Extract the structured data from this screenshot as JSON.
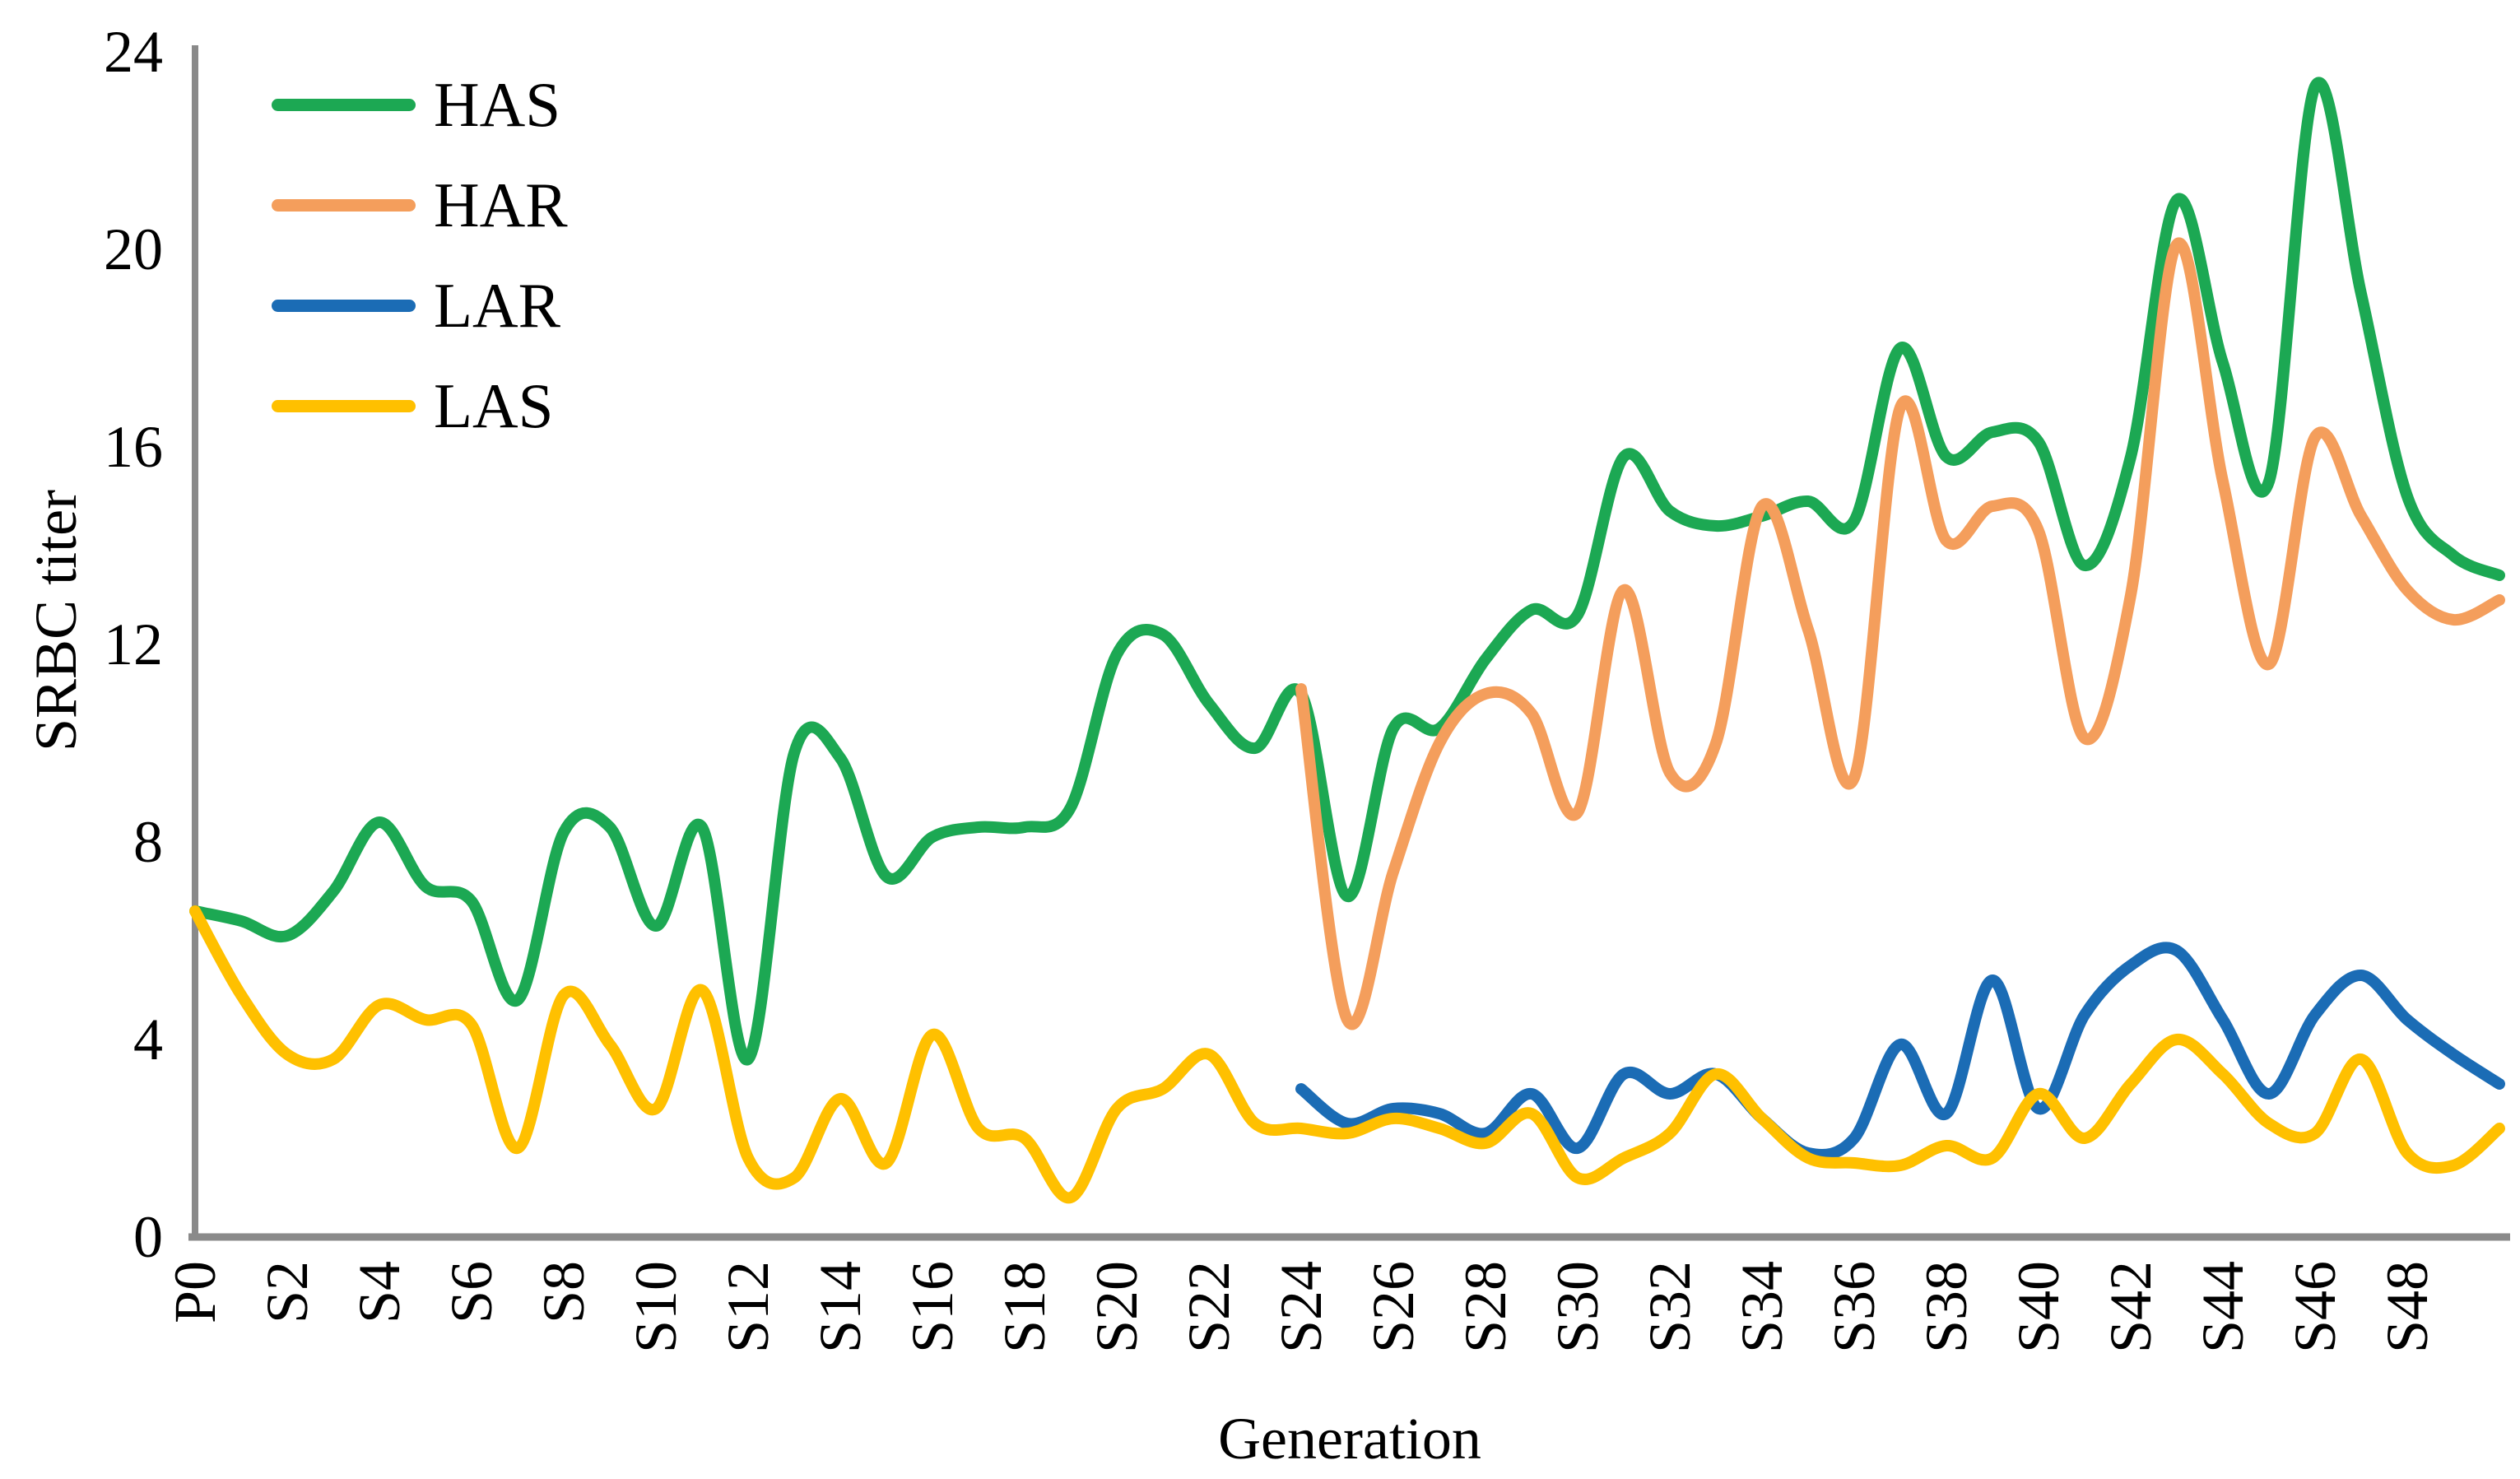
{
  "figure": {
    "xlabel": "Generation",
    "ylabel": "SRBC titer"
  },
  "chart_data": {
    "type": "line",
    "title": "",
    "xlabel": "Generation",
    "ylabel": "SRBC titer",
    "ylim": [
      0,
      24
    ],
    "yticks": [
      0,
      4,
      8,
      12,
      16,
      20,
      24
    ],
    "x_categories": [
      "P0",
      "S1",
      "S2",
      "S3",
      "S4",
      "S5",
      "S6",
      "S7",
      "S8",
      "S9",
      "S10",
      "S11",
      "S12",
      "S13",
      "S14",
      "S15",
      "S16",
      "S17",
      "S18",
      "S19",
      "S20",
      "S21",
      "S22",
      "S23",
      "S24",
      "S25",
      "S26",
      "S27",
      "S28",
      "S29",
      "S30",
      "S31",
      "S32",
      "S33",
      "S34",
      "S35",
      "S36",
      "S37",
      "S38",
      "S39",
      "S40",
      "S41",
      "S42",
      "S43",
      "S44",
      "S45",
      "S46",
      "S47",
      "S48",
      "S49",
      "S50"
    ],
    "x_tick_labels": [
      "P0",
      "S2",
      "S4",
      "S6",
      "S8",
      "S10",
      "S12",
      "S14",
      "S16",
      "S18",
      "S20",
      "S22",
      "S24",
      "S26",
      "S28",
      "S30",
      "S32",
      "S34",
      "S36",
      "S38",
      "S40",
      "S42",
      "S44",
      "S46",
      "S48"
    ],
    "grid": false,
    "legend_position": "top-left-inside",
    "axis_color": "#8A8A8A",
    "series": [
      {
        "name": "HAS",
        "color": "#1CA853",
        "start_index": 0,
        "values": [
          6.6,
          6.4,
          6.1,
          7.0,
          8.4,
          7.1,
          6.8,
          4.8,
          8.2,
          8.3,
          6.3,
          8.3,
          3.6,
          9.8,
          9.7,
          7.3,
          8.1,
          8.3,
          8.3,
          8.7,
          11.8,
          12.2,
          10.8,
          9.9,
          11.0,
          6.9,
          10.3,
          10.3,
          11.7,
          12.7,
          12.6,
          15.8,
          14.7,
          14.4,
          14.6,
          14.9,
          14.5,
          18.0,
          15.8,
          16.3,
          16.1,
          13.6,
          15.8,
          21.0,
          17.7,
          15.3,
          23.3,
          19.1,
          15.0,
          13.8,
          13.4
        ]
      },
      {
        "name": "HAR",
        "color": "#F49E5C",
        "start_index": 24,
        "values": [
          11.1,
          4.4,
          7.4,
          10.0,
          11.0,
          10.6,
          8.6,
          13.1,
          9.4,
          10.0,
          14.8,
          12.3,
          9.3,
          16.8,
          14.1,
          14.8,
          14.3,
          10.1,
          13.0,
          20.1,
          15.3,
          11.6,
          16.2,
          14.6,
          13.1,
          12.5,
          12.9
        ]
      },
      {
        "name": "LAR",
        "color": "#1B6CB5",
        "start_index": 24,
        "values": [
          3.0,
          2.3,
          2.6,
          2.5,
          2.1,
          2.9,
          1.8,
          3.3,
          2.9,
          3.3,
          2.4,
          1.7,
          2.0,
          3.9,
          2.5,
          5.2,
          2.6,
          4.5,
          5.5,
          5.8,
          4.4,
          2.9,
          4.5,
          5.3,
          4.4,
          3.7,
          3.1
        ]
      },
      {
        "name": "LAS",
        "color": "#FFC000",
        "start_index": 0,
        "values": [
          6.6,
          4.9,
          3.7,
          3.6,
          4.7,
          4.4,
          4.3,
          1.8,
          4.9,
          3.9,
          2.6,
          5.0,
          1.6,
          1.2,
          2.8,
          1.5,
          4.1,
          2.2,
          2.0,
          0.8,
          2.6,
          3.0,
          3.7,
          2.3,
          2.2,
          2.1,
          2.4,
          2.2,
          1.9,
          2.5,
          1.2,
          1.6,
          2.1,
          3.3,
          2.4,
          1.6,
          1.5,
          1.45,
          1.85,
          1.6,
          2.9,
          2.0,
          3.1,
          4.0,
          3.3,
          2.3,
          2.1,
          3.6,
          1.7,
          1.45,
          2.2
        ]
      }
    ]
  }
}
